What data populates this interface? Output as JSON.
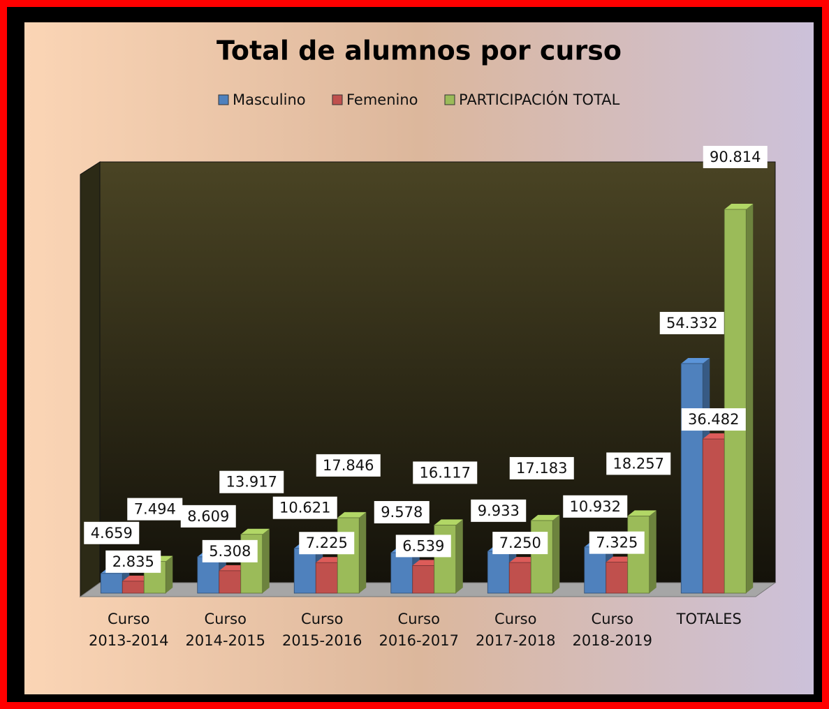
{
  "chart_data": {
    "type": "bar3d",
    "title": "Total de alumnos por curso",
    "categories": [
      "Curso 2013-2014",
      "Curso 2014-2015",
      "Curso 2015-2016",
      "Curso 2016-2017",
      "Curso 2017-2018",
      "Curso 2018-2019",
      "TOTALES"
    ],
    "series": [
      {
        "name": "Masculino",
        "color": "#4f81bd",
        "values": [
          4659,
          8609,
          10621,
          9578,
          9933,
          10932,
          54332
        ],
        "value_labels": [
          "4.659",
          "8.609",
          "10.621",
          "9.578",
          "9.933",
          "10.932",
          "54.332"
        ]
      },
      {
        "name": "Femenino",
        "color": "#c0504d",
        "values": [
          2835,
          5308,
          7225,
          6539,
          7250,
          7325,
          36482
        ],
        "value_labels": [
          "2.835",
          "5.308",
          "7.225",
          "6.539",
          "7.250",
          "7.325",
          "36.482"
        ]
      },
      {
        "name": "PARTICIPACIÓN TOTAL",
        "color": "#9bbb59",
        "values": [
          7494,
          13917,
          17846,
          16117,
          17183,
          18257,
          90814
        ],
        "value_labels": [
          "7.494",
          "13.917",
          "17.846",
          "16.117",
          "17.183",
          "18.257",
          "90.814"
        ]
      }
    ],
    "legend": "top"
  }
}
